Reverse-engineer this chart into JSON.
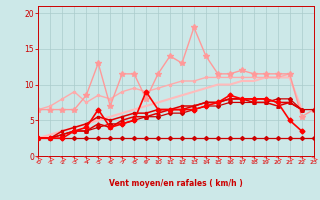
{
  "background_color": "#cce8e8",
  "grid_color": "#aacccc",
  "x_values": [
    0,
    1,
    2,
    3,
    4,
    5,
    6,
    7,
    8,
    9,
    10,
    11,
    12,
    13,
    14,
    15,
    16,
    17,
    18,
    19,
    20,
    21,
    22,
    23
  ],
  "xlabel": "Vent moyen/en rafales ( km/h )",
  "ylim": [
    0,
    21
  ],
  "xlim": [
    0,
    23
  ],
  "yticks": [
    0,
    5,
    10,
    15,
    20
  ],
  "xticks": [
    0,
    1,
    2,
    3,
    4,
    5,
    6,
    7,
    8,
    9,
    10,
    11,
    12,
    13,
    14,
    15,
    16,
    17,
    18,
    19,
    20,
    21,
    22,
    23
  ],
  "series": [
    {
      "y": [
        2.5,
        2.5,
        2.5,
        2.5,
        2.5,
        2.5,
        2.5,
        2.5,
        2.5,
        2.5,
        2.5,
        2.5,
        2.5,
        2.5,
        2.5,
        2.5,
        2.5,
        2.5,
        2.5,
        2.5,
        2.5,
        2.5,
        2.5,
        2.5
      ],
      "color": "#cc0000",
      "linewidth": 0.9,
      "marker": "D",
      "markersize": 2.0,
      "alpha": 1.0,
      "zorder": 3
    },
    {
      "y": [
        2.5,
        2.5,
        3.0,
        3.5,
        3.5,
        4.0,
        4.5,
        4.5,
        5.0,
        5.5,
        5.5,
        6.0,
        6.0,
        6.5,
        7.0,
        7.0,
        7.5,
        7.5,
        7.5,
        7.5,
        8.0,
        8.0,
        6.5,
        6.5
      ],
      "color": "#cc0000",
      "linewidth": 0.9,
      "marker": "D",
      "markersize": 2.0,
      "alpha": 1.0,
      "zorder": 3
    },
    {
      "y": [
        2.5,
        2.5,
        3.5,
        4.0,
        4.5,
        5.5,
        5.0,
        5.5,
        6.0,
        6.0,
        6.5,
        6.5,
        7.0,
        7.0,
        7.5,
        7.5,
        8.0,
        8.0,
        8.0,
        8.0,
        7.5,
        7.5,
        6.5,
        null
      ],
      "color": "#dd0000",
      "linewidth": 1.1,
      "marker": "s",
      "markersize": 2.0,
      "alpha": 1.0,
      "zorder": 4
    },
    {
      "y": [
        2.5,
        2.5,
        3.0,
        3.5,
        3.5,
        4.5,
        4.0,
        5.0,
        5.5,
        5.5,
        6.0,
        6.5,
        6.5,
        7.0,
        7.5,
        7.5,
        8.0,
        8.0,
        7.5,
        7.5,
        7.0,
        7.5,
        6.5,
        null
      ],
      "color": "#dd0000",
      "linewidth": 1.1,
      "marker": "^",
      "markersize": 2.5,
      "alpha": 1.0,
      "zorder": 4
    },
    {
      "y": [
        2.5,
        2.5,
        2.5,
        3.5,
        4.0,
        6.5,
        4.0,
        4.5,
        5.0,
        9.0,
        6.5,
        6.5,
        6.5,
        6.5,
        7.0,
        7.5,
        8.5,
        8.0,
        8.0,
        8.0,
        7.5,
        5.0,
        3.5,
        null
      ],
      "color": "#ff0000",
      "linewidth": 1.2,
      "marker": "D",
      "markersize": 2.5,
      "alpha": 1.0,
      "zorder": 5
    },
    {
      "y": [
        2.5,
        3.0,
        3.5,
        4.0,
        4.5,
        5.0,
        5.5,
        6.0,
        6.5,
        7.0,
        7.5,
        8.0,
        8.5,
        9.0,
        9.5,
        10.0,
        10.0,
        10.5,
        10.5,
        11.0,
        11.0,
        11.0,
        6.5,
        null
      ],
      "color": "#ffbbbb",
      "linewidth": 1.5,
      "marker": null,
      "markersize": 0,
      "alpha": 1.0,
      "zorder": 2
    },
    {
      "y": [
        6.5,
        7.0,
        8.0,
        9.0,
        7.5,
        8.5,
        8.0,
        9.0,
        9.5,
        9.0,
        9.5,
        10.0,
        10.5,
        10.5,
        11.0,
        11.0,
        11.0,
        11.0,
        11.0,
        11.0,
        11.0,
        11.5,
        null,
        null
      ],
      "color": "#ffaaaa",
      "linewidth": 1.0,
      "marker": ".",
      "markersize": 3,
      "alpha": 1.0,
      "zorder": 2
    },
    {
      "y": [
        6.5,
        6.5,
        6.5,
        6.5,
        8.5,
        13.0,
        7.0,
        11.5,
        11.5,
        8.0,
        11.5,
        14.0,
        13.0,
        18.0,
        14.0,
        11.5,
        11.5,
        12.0,
        11.5,
        11.5,
        11.5,
        11.5,
        5.5,
        6.5
      ],
      "color": "#ff9999",
      "linewidth": 1.0,
      "marker": "*",
      "markersize": 4,
      "alpha": 1.0,
      "zorder": 2
    }
  ],
  "arrow_color": "#ff4444",
  "axis_color": "#cc0000",
  "tick_color": "#cc0000",
  "xlabel_color": "#cc0000"
}
